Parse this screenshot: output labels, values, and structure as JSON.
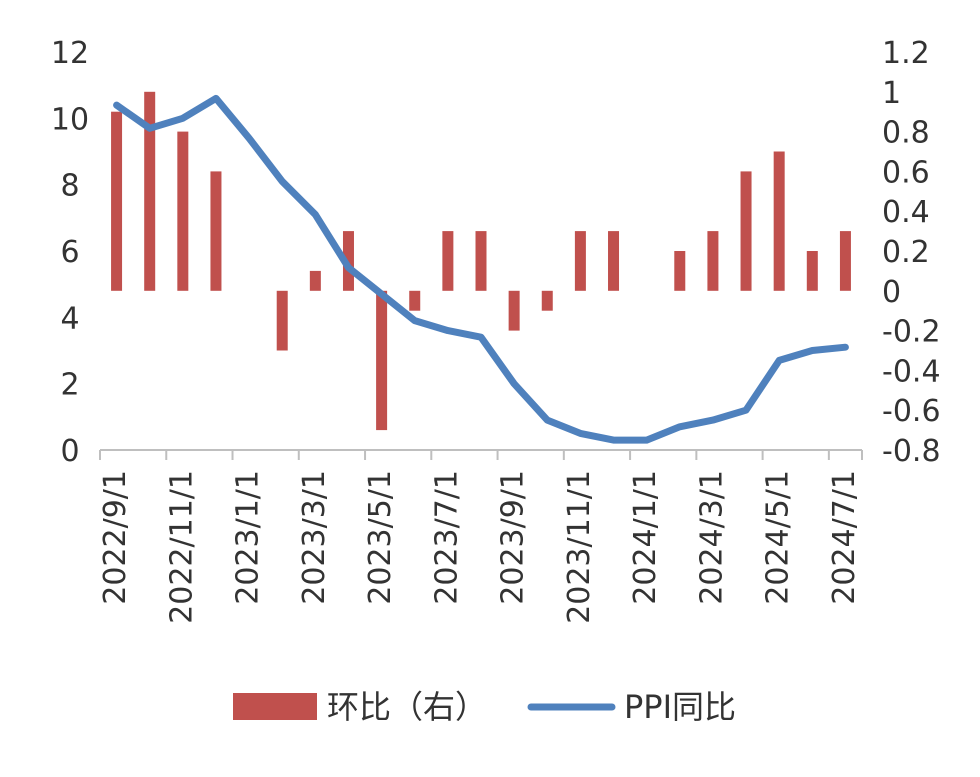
{
  "chart_data": {
    "type": "bar+line",
    "x_tick_labels": [
      "2022/9/1",
      "2022/11/1",
      "2023/1/1",
      "2023/3/1",
      "2023/5/1",
      "2023/7/1",
      "2023/9/1",
      "2023/11/1",
      "2024/1/1",
      "2024/3/1",
      "2024/5/1",
      "2024/7/1"
    ],
    "y_left": {
      "ticks": [
        "0",
        "2",
        "4",
        "6",
        "8",
        "10",
        "12"
      ],
      "min": 0,
      "max": 12
    },
    "y_right": {
      "ticks": [
        "-0.8",
        "-0.6",
        "-0.4",
        "-0.2",
        "0",
        "0.2",
        "0.4",
        "0.6",
        "0.8",
        "1",
        "1.2"
      ],
      "min": -0.8,
      "max": 1.2
    },
    "months": [
      "2022/9",
      "2022/10",
      "2022/11",
      "2022/12",
      "2023/1",
      "2023/2",
      "2023/3",
      "2023/4",
      "2023/5",
      "2023/6",
      "2023/7",
      "2023/8",
      "2023/9",
      "2023/10",
      "2023/11",
      "2023/12",
      "2024/1",
      "2024/2",
      "2024/3",
      "2024/4",
      "2024/5",
      "2024/6",
      "2024/7"
    ],
    "series": [
      {
        "name": "环比（右）",
        "type": "bar",
        "axis": "right",
        "color": "#C0504D",
        "values": [
          0.9,
          1.0,
          0.8,
          0.6,
          0.0,
          -0.3,
          0.1,
          0.3,
          -0.7,
          -0.1,
          0.3,
          0.3,
          -0.2,
          -0.1,
          0.3,
          0.3,
          0.0,
          0.2,
          0.3,
          0.6,
          0.7,
          0.2,
          0.3
        ]
      },
      {
        "name": "PPI同比",
        "type": "line",
        "axis": "left",
        "color": "#4F81BD",
        "values": [
          10.4,
          9.7,
          10.0,
          10.6,
          9.4,
          8.1,
          7.1,
          5.5,
          4.7,
          3.9,
          3.6,
          3.4,
          2.0,
          0.9,
          0.5,
          0.3,
          0.3,
          0.7,
          0.9,
          1.2,
          2.7,
          3.0,
          3.1
        ]
      }
    ],
    "legend": {
      "position": "bottom",
      "items": [
        {
          "label": "环比（右）",
          "color": "#C0504D"
        },
        {
          "label": "PPI同比",
          "color": "#4F81BD"
        }
      ]
    }
  }
}
